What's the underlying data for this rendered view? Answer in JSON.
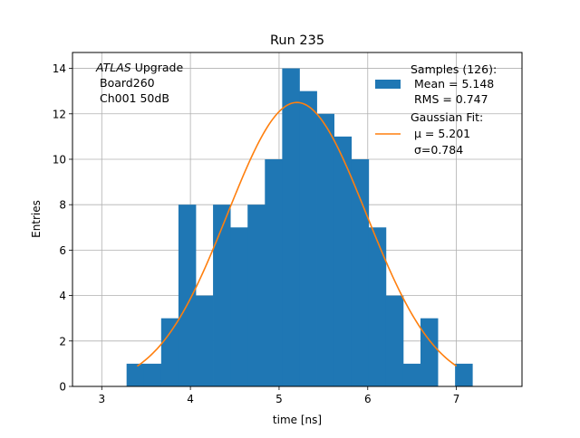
{
  "chart_data": {
    "type": "bar",
    "title": "Run 235",
    "xlabel": "time [ns]",
    "ylabel": "Entries",
    "xlim": [
      2.67,
      7.74
    ],
    "ylim": [
      0,
      14.7
    ],
    "grid": true,
    "x_ticks": [
      3,
      4,
      5,
      6,
      7
    ],
    "x_tick_labels": [
      "3",
      "4",
      "5",
      "6",
      "7"
    ],
    "y_ticks": [
      0,
      2,
      4,
      6,
      8,
      10,
      12,
      14
    ],
    "y_tick_labels": [
      "0",
      "2",
      "4",
      "6",
      "8",
      "10",
      "12",
      "14"
    ],
    "bin_edges": [
      3.28,
      3.475,
      3.67,
      3.865,
      4.06,
      4.255,
      4.45,
      4.645,
      4.84,
      5.035,
      5.23,
      5.425,
      5.62,
      5.815,
      6.01,
      6.205,
      6.4,
      6.595,
      6.79,
      6.985,
      7.18
    ],
    "counts": [
      1,
      1,
      3,
      8,
      4,
      8,
      7,
      8,
      10,
      14,
      13,
      12,
      11,
      10,
      7,
      4,
      1,
      3,
      0,
      1
    ],
    "bar_color": "#1f77b4",
    "fit": {
      "type": "gaussian",
      "amplitude": 12.5,
      "mu": 5.201,
      "sigma": 0.784,
      "x_range": [
        3.4,
        7.0
      ],
      "color": "#ff7f0e"
    },
    "legend": {
      "position": "top-right",
      "entries": [
        {
          "kind": "patch",
          "color": "#1f77b4",
          "lines": [
            "Samples (126):",
            " Mean = 5.148",
            " RMS = 0.747"
          ]
        },
        {
          "kind": "line",
          "color": "#ff7f0e",
          "lines": [
            "Gaussian Fit:",
            " μ = 5.201",
            " σ=0.784"
          ]
        }
      ]
    },
    "annotation": {
      "position": "top-left",
      "lines": [
        "ATLAS Upgrade",
        "Board260",
        "Ch001 50dB"
      ]
    }
  }
}
